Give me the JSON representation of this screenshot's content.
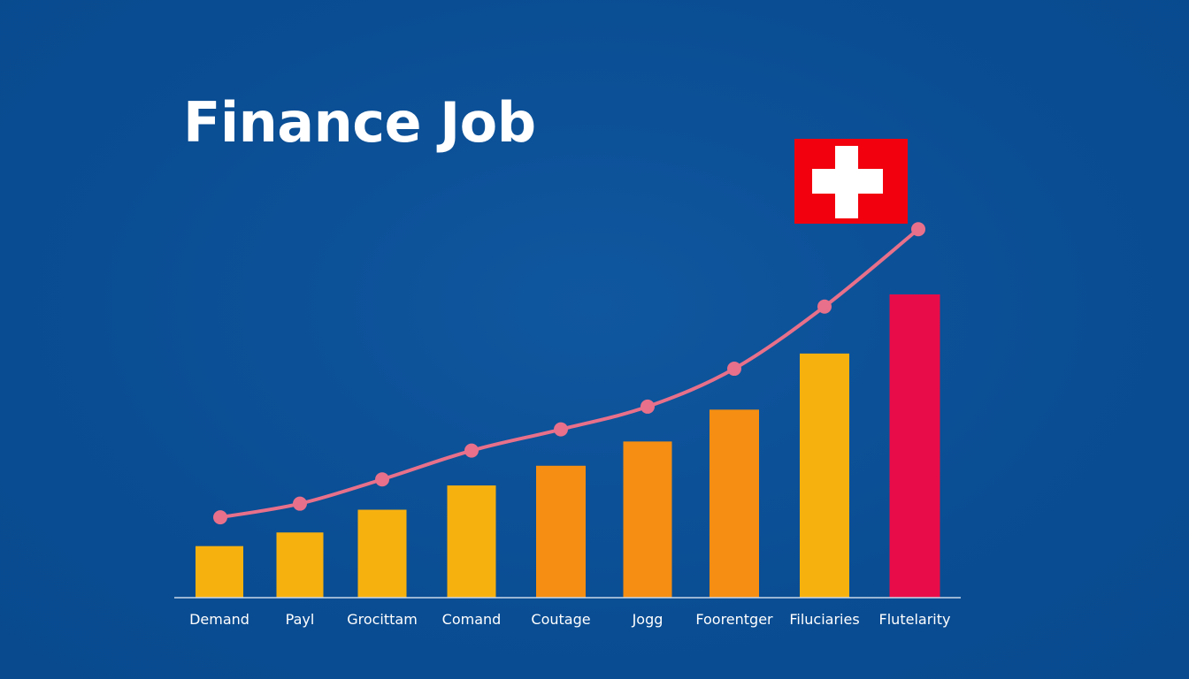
{
  "title": "Finance Job",
  "colors": {
    "background": "#0b4f96",
    "trend_line": "#e8708a",
    "axis": "#c9d8ea",
    "flag_red": "#f2000d",
    "flag_cross": "#ffffff"
  },
  "chart_data": {
    "type": "bar",
    "title": "Finance Job",
    "xlabel": "",
    "ylabel": "",
    "ylim": [
      0,
      100
    ],
    "grid": false,
    "categories": [
      "Demand",
      "Payl",
      "Grocittam",
      "Comand",
      "Coutage",
      "Jogg",
      "Foorentger",
      "Filuciaries",
      "Flutelarity"
    ],
    "values": [
      17,
      21.5,
      29,
      37,
      43.5,
      51.5,
      62,
      80.5,
      100
    ],
    "bar_colors": [
      "#f7b10f",
      "#f7b10f",
      "#f7b10f",
      "#f7b10f",
      "#f58e12",
      "#f58e12",
      "#f58e12",
      "#f7b10f",
      "#e80d48"
    ],
    "trend_line": {
      "name": "trend",
      "values": [
        26.5,
        31,
        39,
        48.5,
        55.5,
        63,
        75.5,
        96,
        121.5
      ]
    },
    "annotation": "swiss-flag"
  }
}
